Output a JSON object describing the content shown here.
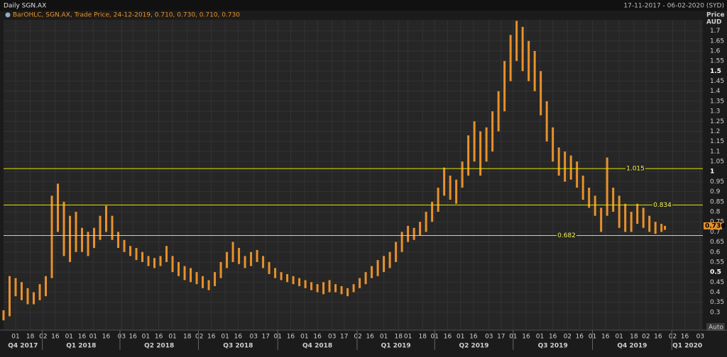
{
  "chart_data": {
    "type": "range-bar",
    "title": "Daily SGN.AX",
    "subtitle": "17-11-2017 - 06-02-2020 (SYD)",
    "legend_text": "BarOHLC, SGN.AX, Trade Price, 24-12-2019, 0.710, 0.730, 0.710, 0.730",
    "y_label": "Price",
    "y_unit": "AUD",
    "scale_mode": "Auto",
    "color": "#e8912c",
    "xlim": [
      "2017-11-17",
      "2020-02-06"
    ],
    "ylim": [
      0.215,
      1.755
    ],
    "yticks": [
      0.3,
      0.35,
      0.4,
      0.45,
      0.5,
      0.55,
      0.6,
      0.65,
      0.7,
      0.75,
      0.8,
      0.85,
      0.9,
      0.95,
      1,
      1.05,
      1.1,
      1.15,
      1.2,
      1.25,
      1.3,
      1.35,
      1.4,
      1.45,
      1.5,
      1.55,
      1.6,
      1.65,
      1.7
    ],
    "xticks": [
      {
        "value": "2017-12-01",
        "label": "01"
      },
      {
        "value": "2017-12-18",
        "label": "18"
      },
      {
        "value": "2018-01-02",
        "label": "02"
      },
      {
        "value": "2018-01-16",
        "label": "16"
      },
      {
        "value": "2018-02-01",
        "label": "01"
      },
      {
        "value": "2018-02-16",
        "label": "16"
      },
      {
        "value": "2018-03-01",
        "label": "01"
      },
      {
        "value": "2018-03-16",
        "label": "16"
      },
      {
        "value": "2018-04-03",
        "label": "03"
      },
      {
        "value": "2018-04-16",
        "label": "16"
      },
      {
        "value": "2018-05-01",
        "label": "01"
      },
      {
        "value": "2018-05-16",
        "label": "16"
      },
      {
        "value": "2018-06-01",
        "label": "01"
      },
      {
        "value": "2018-06-18",
        "label": "18"
      },
      {
        "value": "2018-07-02",
        "label": "02"
      },
      {
        "value": "2018-07-16",
        "label": "16"
      },
      {
        "value": "2018-08-01",
        "label": "01"
      },
      {
        "value": "2018-08-16",
        "label": "16"
      },
      {
        "value": "2018-09-03",
        "label": "03"
      },
      {
        "value": "2018-09-17",
        "label": "17"
      },
      {
        "value": "2018-10-01",
        "label": "01"
      },
      {
        "value": "2018-10-16",
        "label": "16"
      },
      {
        "value": "2018-11-01",
        "label": "01"
      },
      {
        "value": "2018-11-16",
        "label": "16"
      },
      {
        "value": "2018-12-03",
        "label": "03"
      },
      {
        "value": "2018-12-17",
        "label": "17"
      },
      {
        "value": "2019-01-02",
        "label": "02"
      },
      {
        "value": "2019-01-16",
        "label": "16"
      },
      {
        "value": "2019-02-01",
        "label": "01"
      },
      {
        "value": "2019-02-18",
        "label": "18"
      },
      {
        "value": "2019-03-01",
        "label": "01"
      },
      {
        "value": "2019-03-18",
        "label": "18"
      },
      {
        "value": "2019-04-01",
        "label": "01"
      },
      {
        "value": "2019-04-16",
        "label": "16"
      },
      {
        "value": "2019-05-01",
        "label": "01"
      },
      {
        "value": "2019-05-16",
        "label": "16"
      },
      {
        "value": "2019-06-03",
        "label": "03"
      },
      {
        "value": "2019-06-17",
        "label": "17"
      },
      {
        "value": "2019-07-01",
        "label": "01"
      },
      {
        "value": "2019-07-16",
        "label": "16"
      },
      {
        "value": "2019-08-01",
        "label": "01"
      },
      {
        "value": "2019-08-16",
        "label": "16"
      },
      {
        "value": "2019-09-02",
        "label": "02"
      },
      {
        "value": "2019-09-16",
        "label": "16"
      },
      {
        "value": "2019-10-01",
        "label": "01"
      },
      {
        "value": "2019-10-16",
        "label": "16"
      },
      {
        "value": "2019-11-01",
        "label": "01"
      },
      {
        "value": "2019-11-18",
        "label": "18"
      },
      {
        "value": "2019-12-02",
        "label": "02"
      },
      {
        "value": "2019-12-16",
        "label": "16"
      },
      {
        "value": "2020-01-02",
        "label": "02"
      },
      {
        "value": "2020-01-16",
        "label": "16"
      },
      {
        "value": "2020-02-03",
        "label": "03"
      }
    ],
    "quarters": [
      {
        "value": "2017-10-01",
        "label": "Q4 2017"
      },
      {
        "value": "2018-01-01",
        "label": "Q1 2018"
      },
      {
        "value": "2018-04-01",
        "label": "Q2 2018"
      },
      {
        "value": "2018-07-01",
        "label": "Q3 2018"
      },
      {
        "value": "2018-10-01",
        "label": "Q4 2018"
      },
      {
        "value": "2019-01-01",
        "label": "Q1 2019"
      },
      {
        "value": "2019-04-01",
        "label": "Q2 2019"
      },
      {
        "value": "2019-07-01",
        "label": "Q3 2019"
      },
      {
        "value": "2019-10-01",
        "label": "Q4 2019"
      },
      {
        "value": "2020-01-01",
        "label": "Q1 2020"
      }
    ],
    "hlines": [
      1.015,
      0.834,
      0.682
    ],
    "last_price": {
      "value": 0.73,
      "label": "0.730"
    },
    "x": [
      "2017-11-17",
      "2017-11-24",
      "2017-12-01",
      "2017-12-08",
      "2017-12-15",
      "2017-12-22",
      "2017-12-29",
      "2018-01-05",
      "2018-01-12",
      "2018-01-19",
      "2018-01-26",
      "2018-02-02",
      "2018-02-09",
      "2018-02-16",
      "2018-02-23",
      "2018-03-02",
      "2018-03-09",
      "2018-03-16",
      "2018-03-23",
      "2018-03-30",
      "2018-04-06",
      "2018-04-13",
      "2018-04-20",
      "2018-04-27",
      "2018-05-04",
      "2018-05-11",
      "2018-05-18",
      "2018-05-25",
      "2018-06-01",
      "2018-06-08",
      "2018-06-15",
      "2018-06-22",
      "2018-06-29",
      "2018-07-06",
      "2018-07-13",
      "2018-07-20",
      "2018-07-27",
      "2018-08-03",
      "2018-08-10",
      "2018-08-17",
      "2018-08-24",
      "2018-08-31",
      "2018-09-07",
      "2018-09-14",
      "2018-09-21",
      "2018-09-28",
      "2018-10-05",
      "2018-10-12",
      "2018-10-19",
      "2018-10-26",
      "2018-11-02",
      "2018-11-09",
      "2018-11-16",
      "2018-11-23",
      "2018-11-30",
      "2018-12-07",
      "2018-12-14",
      "2018-12-21",
      "2018-12-28",
      "2019-01-04",
      "2019-01-11",
      "2019-01-18",
      "2019-01-25",
      "2019-02-01",
      "2019-02-08",
      "2019-02-15",
      "2019-02-22",
      "2019-03-01",
      "2019-03-08",
      "2019-03-15",
      "2019-03-22",
      "2019-03-29",
      "2019-04-05",
      "2019-04-12",
      "2019-04-19",
      "2019-04-26",
      "2019-05-03",
      "2019-05-10",
      "2019-05-17",
      "2019-05-24",
      "2019-05-31",
      "2019-06-07",
      "2019-06-14",
      "2019-06-21",
      "2019-06-28",
      "2019-07-05",
      "2019-07-12",
      "2019-07-19",
      "2019-07-26",
      "2019-08-02",
      "2019-08-09",
      "2019-08-16",
      "2019-08-23",
      "2019-08-30",
      "2019-09-06",
      "2019-09-13",
      "2019-09-20",
      "2019-09-27",
      "2019-10-04",
      "2019-10-11",
      "2019-10-18",
      "2019-10-25",
      "2019-11-01",
      "2019-11-08",
      "2019-11-15",
      "2019-11-22",
      "2019-11-29",
      "2019-12-06",
      "2019-12-13",
      "2019-12-20",
      "2019-12-24"
    ],
    "high": [
      0.31,
      0.48,
      0.47,
      0.45,
      0.42,
      0.4,
      0.44,
      0.48,
      0.88,
      0.94,
      0.85,
      0.78,
      0.8,
      0.72,
      0.7,
      0.72,
      0.78,
      0.83,
      0.78,
      0.7,
      0.66,
      0.63,
      0.62,
      0.6,
      0.58,
      0.57,
      0.58,
      0.63,
      0.58,
      0.55,
      0.53,
      0.52,
      0.5,
      0.48,
      0.46,
      0.5,
      0.55,
      0.6,
      0.65,
      0.62,
      0.58,
      0.6,
      0.61,
      0.58,
      0.55,
      0.52,
      0.5,
      0.49,
      0.48,
      0.47,
      0.46,
      0.45,
      0.44,
      0.45,
      0.46,
      0.44,
      0.43,
      0.42,
      0.44,
      0.47,
      0.5,
      0.53,
      0.56,
      0.58,
      0.6,
      0.65,
      0.7,
      0.73,
      0.72,
      0.75,
      0.8,
      0.85,
      0.92,
      1.02,
      0.98,
      0.96,
      1.05,
      1.18,
      1.25,
      1.2,
      1.22,
      1.3,
      1.4,
      1.55,
      1.68,
      1.75,
      1.72,
      1.65,
      1.6,
      1.5,
      1.35,
      1.22,
      1.12,
      1.1,
      1.08,
      1.05,
      0.98,
      0.92,
      0.88,
      0.82,
      1.07,
      0.92,
      0.88,
      0.84,
      0.8,
      0.84,
      0.82,
      0.78,
      0.75,
      0.74,
      0.73
    ],
    "low": [
      0.26,
      0.28,
      0.38,
      0.36,
      0.34,
      0.34,
      0.36,
      0.38,
      0.47,
      0.7,
      0.58,
      0.55,
      0.6,
      0.6,
      0.58,
      0.62,
      0.66,
      0.7,
      0.66,
      0.62,
      0.6,
      0.58,
      0.56,
      0.55,
      0.53,
      0.52,
      0.53,
      0.55,
      0.5,
      0.48,
      0.46,
      0.45,
      0.44,
      0.42,
      0.41,
      0.43,
      0.47,
      0.52,
      0.55,
      0.54,
      0.52,
      0.53,
      0.55,
      0.52,
      0.49,
      0.47,
      0.46,
      0.45,
      0.44,
      0.43,
      0.42,
      0.41,
      0.4,
      0.39,
      0.4,
      0.4,
      0.39,
      0.38,
      0.4,
      0.42,
      0.44,
      0.47,
      0.48,
      0.5,
      0.52,
      0.55,
      0.6,
      0.65,
      0.66,
      0.68,
      0.7,
      0.75,
      0.8,
      0.88,
      0.86,
      0.84,
      0.92,
      0.98,
      1.05,
      0.98,
      1.05,
      1.1,
      1.2,
      1.3,
      1.45,
      1.55,
      1.5,
      1.45,
      1.4,
      1.28,
      1.15,
      1.05,
      0.98,
      0.95,
      0.96,
      0.92,
      0.86,
      0.82,
      0.78,
      0.7,
      0.78,
      0.8,
      0.72,
      0.7,
      0.7,
      0.74,
      0.72,
      0.7,
      0.69,
      0.7,
      0.71
    ]
  }
}
